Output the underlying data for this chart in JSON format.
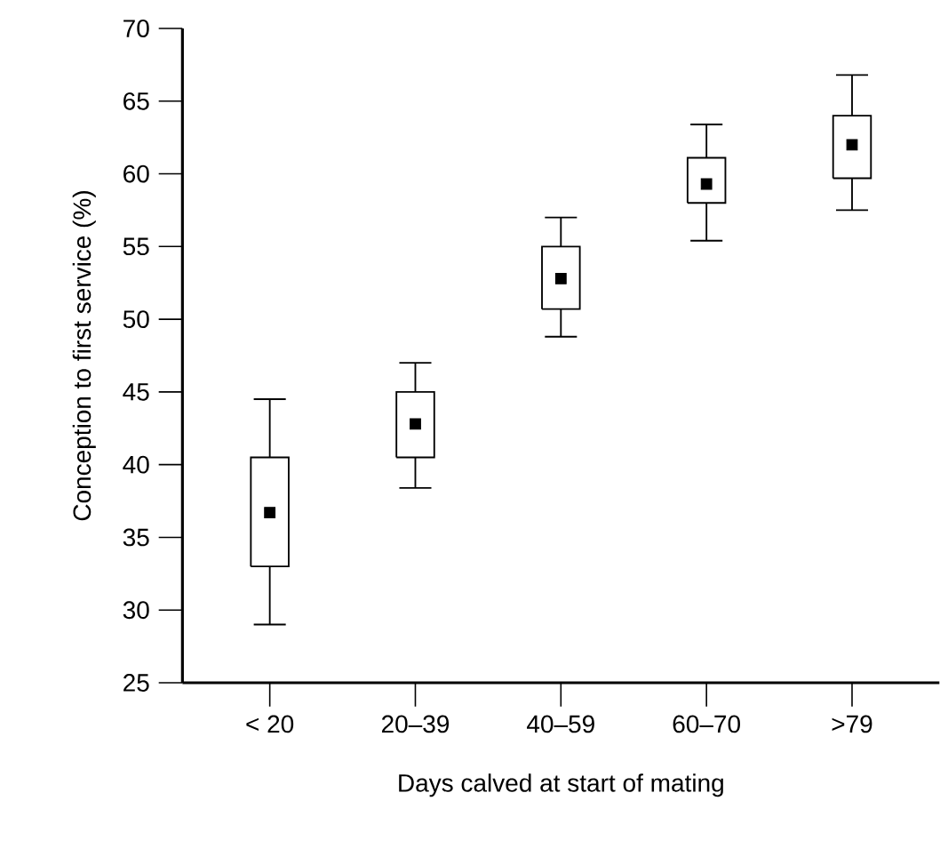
{
  "chart_data": {
    "type": "box",
    "xlabel": "Days calved at start of mating",
    "ylabel": "Conception to first service (%)",
    "categories": [
      "< 20",
      "20–39",
      "40–59",
      "60–70",
      ">79"
    ],
    "boxes": [
      {
        "low": 29,
        "q1": 33,
        "median": 36.7,
        "q3": 40.5,
        "high": 44.5
      },
      {
        "low": 38.4,
        "q1": 40.5,
        "median": 42.8,
        "q3": 45,
        "high": 47
      },
      {
        "low": 48.8,
        "q1": 50.7,
        "median": 52.8,
        "q3": 55,
        "high": 57
      },
      {
        "low": 55.4,
        "q1": 58,
        "median": 59.3,
        "q3": 61.1,
        "high": 63.4
      },
      {
        "low": 57.5,
        "q1": 59.7,
        "median": 62,
        "q3": 64,
        "high": 66.8
      }
    ],
    "ylim": [
      25,
      70
    ],
    "yticks": [
      25,
      30,
      35,
      40,
      45,
      50,
      55,
      60,
      65,
      70
    ]
  }
}
